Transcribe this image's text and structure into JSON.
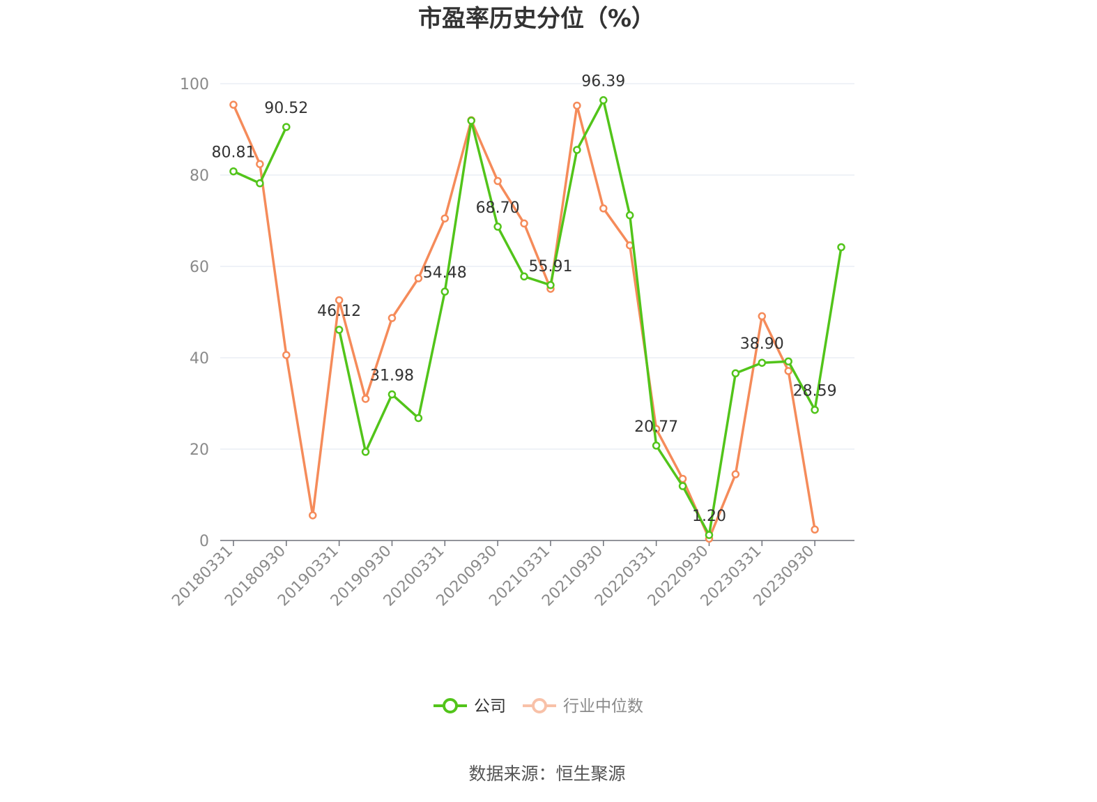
{
  "chart_data": {
    "type": "line",
    "title": "市盈率历史分位（%）",
    "ylim": [
      0,
      100
    ],
    "yticks": [
      0,
      20,
      40,
      60,
      80,
      100
    ],
    "grid": true,
    "legend_position": "bottom",
    "x": [
      "20180331",
      "20180630",
      "20180930",
      "20181231",
      "20190331",
      "20190630",
      "20190930",
      "20191231",
      "20200331",
      "20200630",
      "20200930",
      "20201231",
      "20210331",
      "20210630",
      "20210930",
      "20211231",
      "20220331",
      "20220630",
      "20220930",
      "20221231",
      "20230331",
      "20230630",
      "20230930",
      "20231231"
    ],
    "xtick_labels": [
      "20180331",
      "20180930",
      "20190331",
      "20190930",
      "20200331",
      "20200930",
      "20210331",
      "20210930",
      "20220331",
      "20220930",
      "20230331",
      "20230930"
    ],
    "series": [
      {
        "name": "公司",
        "color": "#52c41a",
        "values": [
          80.81,
          78.2,
          90.52,
          null,
          46.12,
          19.4,
          31.98,
          26.8,
          54.48,
          91.9,
          68.7,
          57.8,
          55.91,
          85.5,
          96.39,
          71.2,
          20.77,
          11.9,
          1.2,
          36.6,
          38.9,
          39.2,
          28.59,
          64.2
        ],
        "labels": {
          "0": "80.81",
          "2": "90.52",
          "4": "46.12",
          "6": "31.98",
          "8": "54.48",
          "10": "68.70",
          "12": "55.91",
          "14": "96.39",
          "16": "20.77",
          "18": "1.20",
          "20": "38.90",
          "22": "28.59"
        }
      },
      {
        "name": "行业中位数",
        "color": "#f58b5a",
        "values": [
          95.4,
          82.4,
          40.6,
          5.5,
          52.6,
          31.0,
          48.7,
          57.4,
          70.5,
          92.0,
          78.7,
          69.4,
          55.1,
          95.2,
          72.7,
          64.6,
          24.4,
          13.5,
          0.4,
          14.5,
          49.1,
          37.1,
          2.4,
          null
        ]
      }
    ]
  },
  "source": "数据来源：恒生聚源"
}
